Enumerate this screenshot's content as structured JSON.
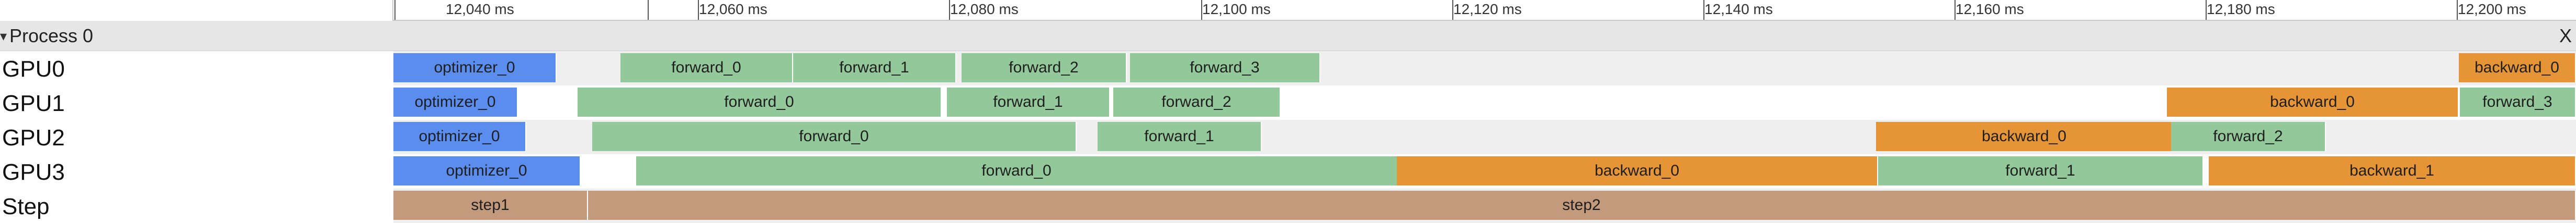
{
  "ruler": {
    "ticks": [
      "12,040 ms",
      "12,060 ms",
      "12,080 ms",
      "12,100 ms",
      "12,120 ms",
      "12,140 ms",
      "12,160 ms",
      "12,180 ms",
      "12,200 ms"
    ]
  },
  "process": {
    "label": "Process 0",
    "chevron": "▾",
    "close": "X"
  },
  "rows": [
    {
      "label": "GPU0"
    },
    {
      "label": "GPU1"
    },
    {
      "label": "GPU2"
    },
    {
      "label": "GPU3"
    },
    {
      "label": "Step"
    }
  ],
  "slices": {
    "gpu0": [
      {
        "label": "optimizer_0",
        "color": "#5b8def",
        "type": "optimizer"
      },
      {
        "label": "forward_0",
        "color": "#93c99a",
        "type": "forward"
      },
      {
        "label": "forward_1",
        "color": "#93c99a",
        "type": "forward"
      },
      {
        "label": "forward_2",
        "color": "#93c99a",
        "type": "forward"
      },
      {
        "label": "forward_3",
        "color": "#93c99a",
        "type": "forward"
      },
      {
        "label": "backward_0",
        "color": "#e59436",
        "type": "backward"
      }
    ],
    "gpu1": [
      {
        "label": "optimizer_0",
        "color": "#5b8def",
        "type": "optimizer"
      },
      {
        "label": "forward_0",
        "color": "#93c99a",
        "type": "forward"
      },
      {
        "label": "forward_1",
        "color": "#93c99a",
        "type": "forward"
      },
      {
        "label": "forward_2",
        "color": "#93c99a",
        "type": "forward"
      },
      {
        "label": "backward_0",
        "color": "#e59436",
        "type": "backward"
      },
      {
        "label": "forward_3",
        "color": "#93c99a",
        "type": "forward"
      }
    ],
    "gpu2": [
      {
        "label": "optimizer_0",
        "color": "#5b8def",
        "type": "optimizer"
      },
      {
        "label": "forward_0",
        "color": "#93c99a",
        "type": "forward"
      },
      {
        "label": "forward_1",
        "color": "#93c99a",
        "type": "forward"
      },
      {
        "label": "backward_0",
        "color": "#e59436",
        "type": "backward"
      },
      {
        "label": "forward_2",
        "color": "#93c99a",
        "type": "forward"
      }
    ],
    "gpu3": [
      {
        "label": "optimizer_0",
        "color": "#5b8def",
        "type": "optimizer"
      },
      {
        "label": "forward_0",
        "color": "#93c99a",
        "type": "forward"
      },
      {
        "label": "backward_0",
        "color": "#e59436",
        "type": "backward"
      },
      {
        "label": "forward_1",
        "color": "#93c99a",
        "type": "forward"
      },
      {
        "label": "backward_1",
        "color": "#e59436",
        "type": "backward"
      }
    ],
    "step": [
      {
        "label": "step1",
        "color": "#c49a7c",
        "type": "step"
      },
      {
        "label": "step2",
        "color": "#c49a7c",
        "type": "step"
      }
    ]
  }
}
